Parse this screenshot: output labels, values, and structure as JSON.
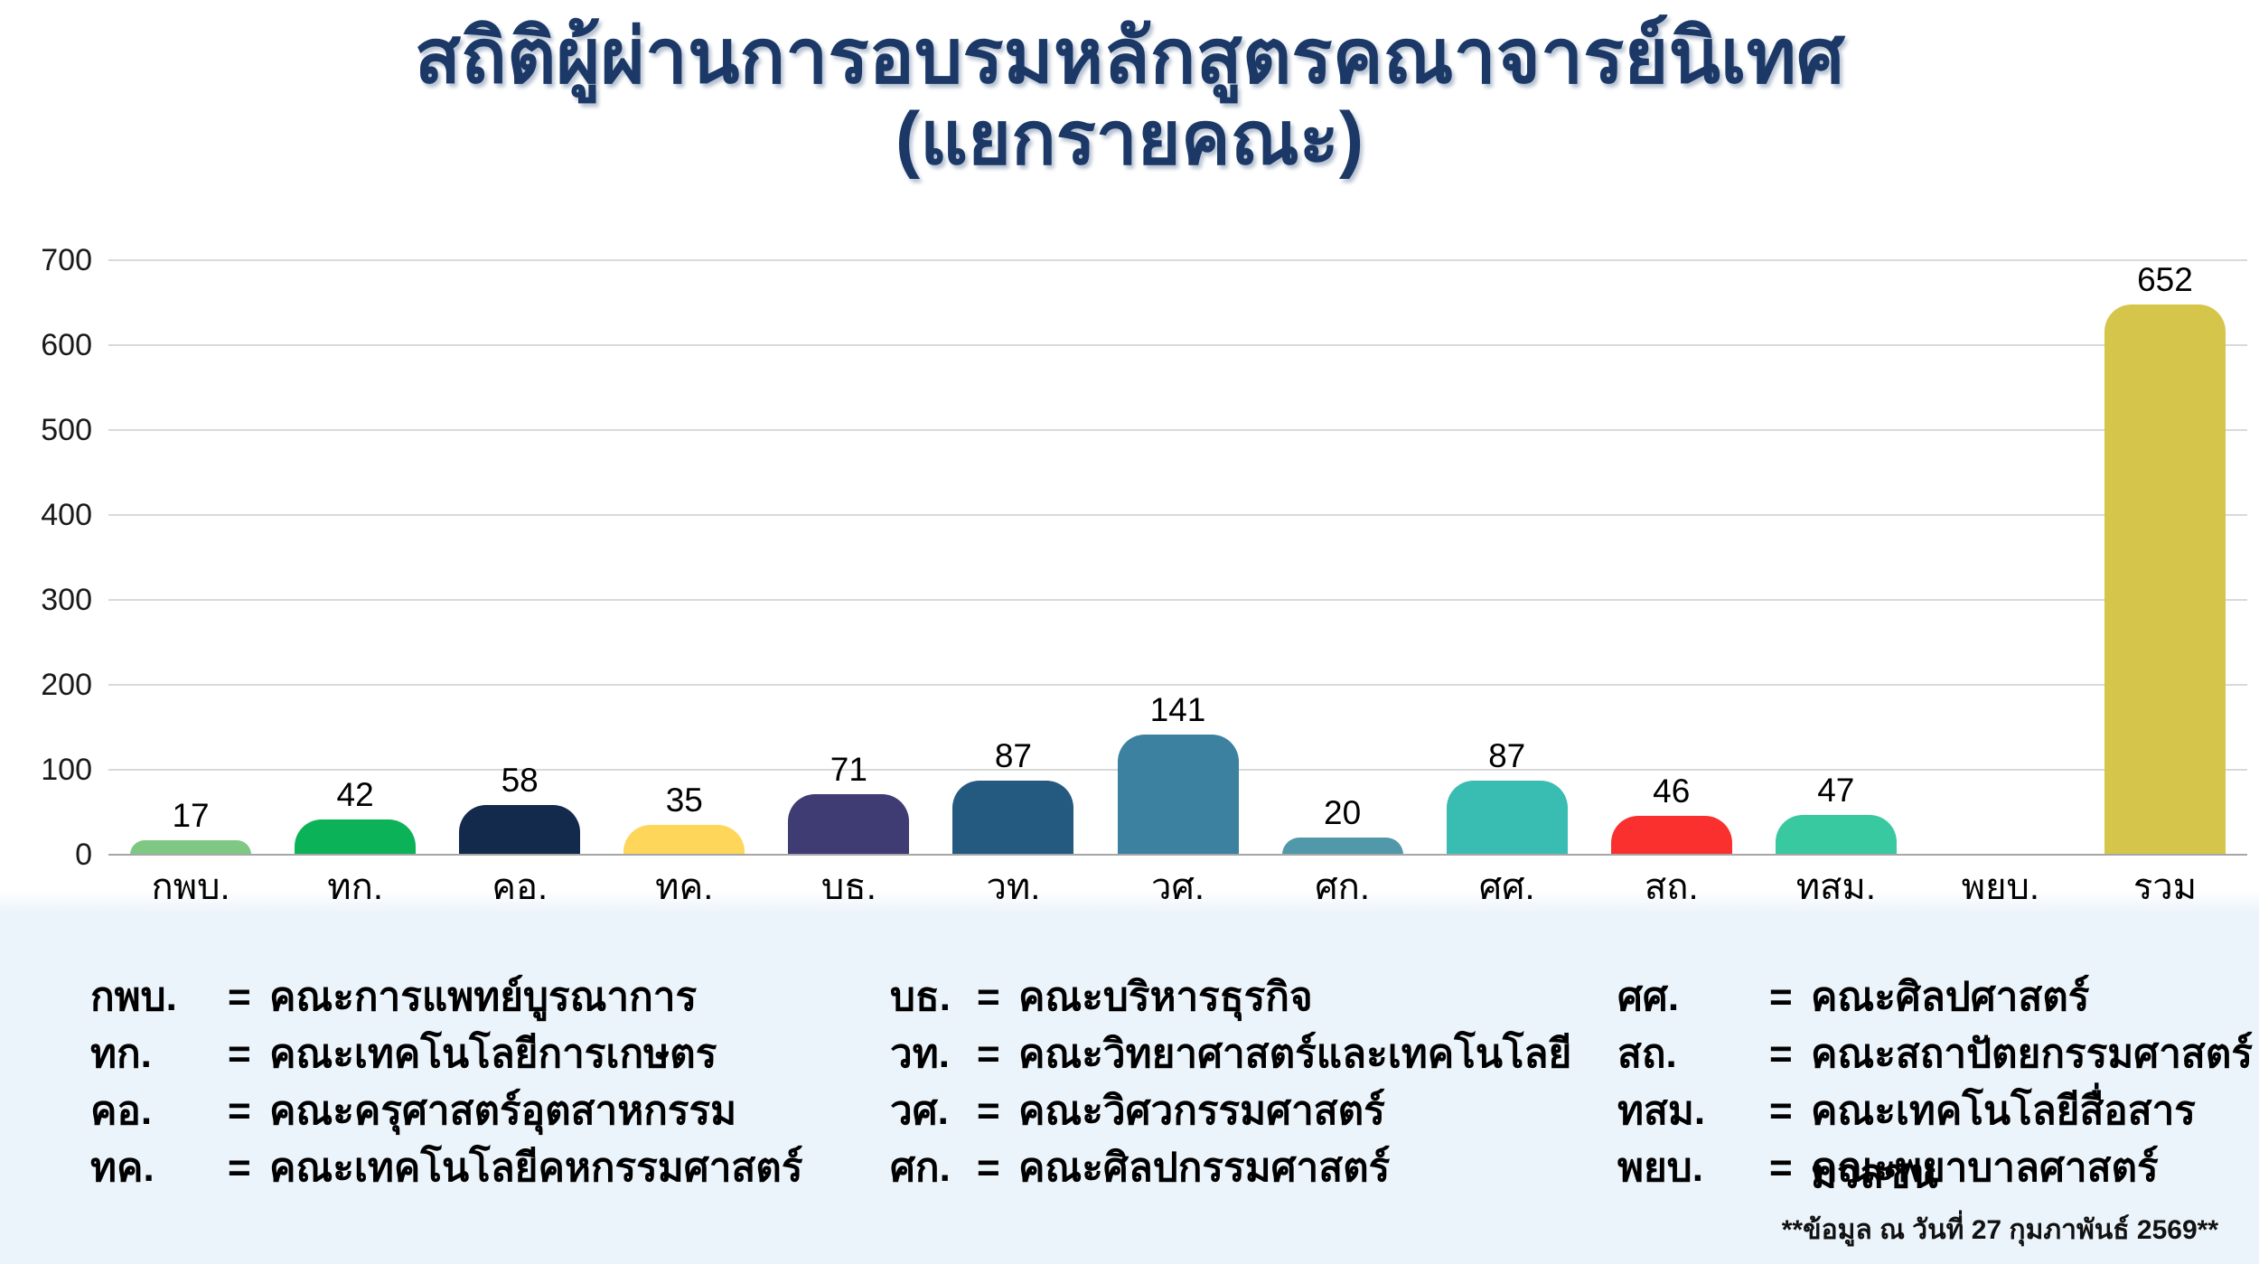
{
  "title": {
    "line1": "สถิติผู้ผ่านการอบรมหลักสูตรคณาจารย์นิเทศ",
    "line2": "(แยกรายคณะ)",
    "color": "#1b3866"
  },
  "chart_data": {
    "type": "bar",
    "title": "สถิติผู้ผ่านการอบรมหลักสูตรคณาจารย์นิเทศ (แยกรายคณะ)",
    "categories": [
      "กพบ.",
      "ทก.",
      "คอ.",
      "ทค.",
      "บธ.",
      "วท.",
      "วศ.",
      "ศก.",
      "ศศ.",
      "สถ.",
      "ทสม.",
      "พยบ.",
      "รวม"
    ],
    "values": [
      17,
      42,
      58,
      35,
      71,
      87,
      141,
      20,
      87,
      46,
      47,
      null,
      652
    ],
    "bar_colors": [
      "#7ec883",
      "#0bb257",
      "#132a4d",
      "#fdd65a",
      "#3e3c72",
      "#255a80",
      "#3d81a1",
      "#5198ab",
      "#39bcb1",
      "#f9302e",
      "#38c9a1",
      null,
      "#d6c54b"
    ],
    "xlabel": "",
    "ylabel": "",
    "ylim": [
      0,
      700
    ],
    "yticks": [
      0,
      100,
      200,
      300,
      400,
      500,
      600,
      700
    ],
    "grid": true,
    "legend_position": "none",
    "gridline_color": "#d9d9d9",
    "axisline_color": "#a6a6a6"
  },
  "legend": {
    "separator": "=",
    "columns": [
      {
        "items": [
          {
            "abbr": "กพบ.",
            "name": "คณะการแพทย์บูรณาการ"
          },
          {
            "abbr": "ทก.",
            "name": "คณะเทคโนโลยีการเกษตร"
          },
          {
            "abbr": "คอ.",
            "name": "คณะครุศาสตร์อุตสาหกรรม"
          },
          {
            "abbr": "ทค.",
            "name": "คณะเทคโนโลยีคหกรรมศาสตร์"
          }
        ]
      },
      {
        "items": [
          {
            "abbr": "บธ.",
            "name": "คณะบริหารธุรกิจ"
          },
          {
            "abbr": "วท.",
            "name": "คณะวิทยาศาสตร์และเทคโนโลยี"
          },
          {
            "abbr": "วศ.",
            "name": "คณะวิศวกรรมศาสตร์"
          },
          {
            "abbr": "ศก.",
            "name": "คณะศิลปกรรมศาสตร์"
          }
        ]
      },
      {
        "items": [
          {
            "abbr": "ศศ.",
            "name": "คณะศิลปศาสตร์"
          },
          {
            "abbr": "สถ.",
            "name": "คณะสถาปัตยกรรมศาสตร์"
          },
          {
            "abbr": "ทสม.",
            "name": "คณะเทคโนโลยีสื่อสารมวลชน"
          },
          {
            "abbr": "พยบ.",
            "name": "คณะพยาบาลศาสตร์"
          }
        ]
      }
    ]
  },
  "footnote": "**ข้อมูล ณ วันที่ 27 กุมภาพันธ์  2569**"
}
